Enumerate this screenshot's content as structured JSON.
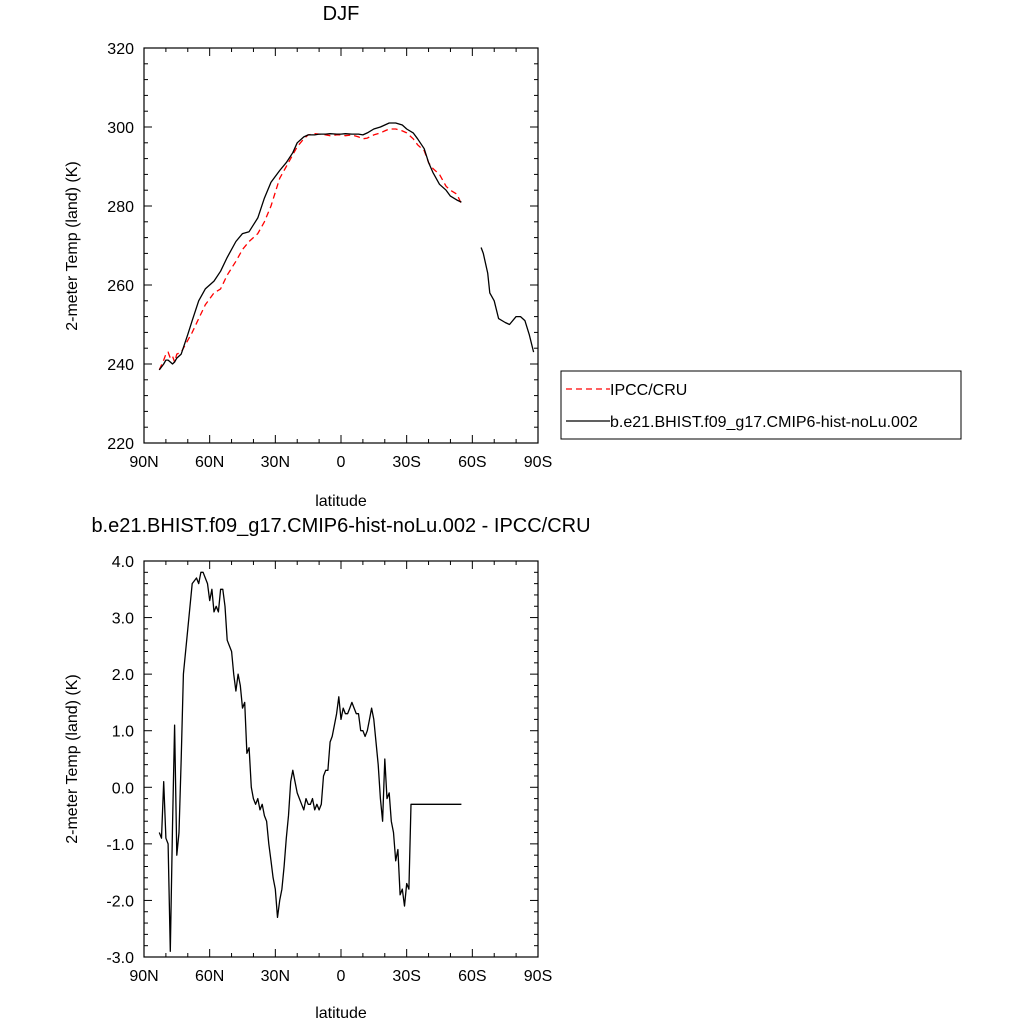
{
  "chart_data": [
    {
      "type": "line",
      "title": "DJF",
      "xlabel": "latitude",
      "ylabel": "2-meter Temp (land) (K)",
      "xlim": [
        90,
        -90
      ],
      "ylim": [
        220,
        320
      ],
      "x_ticks": [
        90,
        60,
        30,
        0,
        -30,
        -60,
        -90
      ],
      "x_tick_labels": [
        "90N",
        "60N",
        "30N",
        "0",
        "30S",
        "60S",
        "90S"
      ],
      "y_ticks": [
        220,
        240,
        260,
        280,
        300,
        320
      ],
      "y_tick_labels": [
        "220",
        "240",
        "260",
        "280",
        "300",
        "320"
      ],
      "legend_position": "right",
      "series": [
        {
          "name": "IPCC/CRU",
          "color": "#ff0000",
          "dash": "dashed",
          "x": [
            83,
            81,
            80,
            79,
            78,
            77,
            76,
            75,
            73,
            70,
            68,
            65,
            62,
            58,
            55,
            52,
            48,
            45,
            42,
            38,
            35,
            32,
            28,
            25,
            22,
            20,
            17,
            15,
            12,
            10,
            7,
            5,
            2,
            0,
            -2,
            -5,
            -8,
            -10,
            -12,
            -15,
            -18,
            -20,
            -22,
            -25,
            -28,
            -30,
            -33,
            -35,
            -38,
            -40,
            -42,
            -45,
            -48,
            -50,
            -53,
            -55
          ],
          "y": [
            238.5,
            241,
            242.5,
            243,
            241.5,
            242,
            240.5,
            242.5,
            243,
            246,
            248,
            251.5,
            255,
            258,
            259,
            262.5,
            266,
            269,
            271,
            273,
            276,
            280,
            287,
            290,
            293,
            295,
            297,
            298,
            298.3,
            298.2,
            298,
            297.8,
            298,
            298,
            297.8,
            298,
            297.5,
            297,
            297.2,
            298,
            298.5,
            299,
            299.5,
            299.5,
            299,
            298.5,
            297,
            295.5,
            294,
            291,
            289.5,
            288,
            285,
            284,
            283,
            280.5
          ]
        },
        {
          "name": "b.e21.BHIST.f09_g17.CMIP6-hist-noLu.002",
          "color": "#000000",
          "dash": "solid",
          "x": [
            83,
            81,
            80,
            79,
            78,
            77,
            76,
            75,
            73,
            70,
            68,
            65,
            62,
            58,
            55,
            52,
            48,
            45,
            42,
            38,
            35,
            32,
            28,
            25,
            22,
            20,
            17,
            15,
            12,
            10,
            7,
            5,
            2,
            0,
            -2,
            -5,
            -8,
            -10,
            -12,
            -15,
            -18,
            -20,
            -22,
            -25,
            -28,
            -30,
            -33,
            -35,
            -38,
            -40,
            -42,
            -45,
            -48,
            -50,
            -53,
            -55,
            null,
            -64,
            -65,
            -67,
            -68,
            -70,
            -72,
            -75,
            -77,
            -80,
            -82,
            -84,
            -86,
            -88
          ],
          "y": [
            238.5,
            240,
            241,
            241,
            240.5,
            240,
            240.5,
            241.5,
            242.5,
            247.5,
            251,
            256,
            259,
            261,
            263.5,
            267,
            271,
            273,
            273.5,
            277,
            282,
            286,
            289,
            291,
            293.5,
            296,
            297.5,
            298,
            298,
            298.2,
            298.2,
            298.3,
            298.2,
            298.2,
            298.3,
            298.2,
            298.2,
            298,
            298.5,
            299.5,
            300,
            300.5,
            301,
            301,
            300.5,
            299.5,
            298.5,
            297,
            294.5,
            291,
            288.5,
            285.5,
            284,
            282.5,
            281.5,
            281,
            null,
            269.5,
            268,
            263,
            258,
            256,
            251.5,
            250.5,
            250,
            252,
            252,
            251,
            247.5,
            243
          ]
        }
      ]
    },
    {
      "type": "line",
      "title": "b.e21.BHIST.f09_g17.CMIP6-hist-noLu.002 - IPCC/CRU",
      "xlabel": "latitude",
      "ylabel": "2-meter Temp (land) (K)",
      "xlim": [
        90,
        -90
      ],
      "ylim": [
        -3,
        4
      ],
      "x_ticks": [
        90,
        60,
        30,
        0,
        -30,
        -60,
        -90
      ],
      "x_tick_labels": [
        "90N",
        "60N",
        "30N",
        "0",
        "30S",
        "60S",
        "90S"
      ],
      "y_ticks": [
        -3,
        -2,
        -1,
        0,
        1,
        2,
        3,
        4
      ],
      "y_tick_labels": [
        "-3.0",
        "-2.0",
        "-1.0",
        "0.0",
        "1.0",
        "2.0",
        "3.0",
        "4.0"
      ],
      "series": [
        {
          "name": "",
          "color": "#000000",
          "dash": "solid",
          "x": [
            83,
            82,
            81,
            80,
            79,
            78,
            77,
            76,
            75,
            74,
            73,
            72,
            70,
            68,
            66,
            65,
            64,
            63,
            62,
            61,
            60,
            59,
            58,
            57,
            56,
            55,
            54,
            53,
            52,
            51,
            50,
            49,
            48,
            47,
            46,
            45,
            44,
            43,
            42,
            41,
            40,
            39,
            38,
            37,
            36,
            35,
            34,
            33,
            32,
            31,
            30,
            29,
            28,
            27,
            26,
            25,
            24,
            23,
            22,
            21,
            20,
            19,
            18,
            17,
            16,
            15,
            14,
            13,
            12,
            11,
            10,
            9,
            8,
            7,
            6,
            5,
            4,
            3,
            2,
            1,
            0,
            -1,
            -2,
            -3,
            -4,
            -5,
            -6,
            -7,
            -8,
            -9,
            -10,
            -11,
            -12,
            -13,
            -14,
            -15,
            -16,
            -17,
            -18,
            -19,
            -20,
            -21,
            -22,
            -23,
            -24,
            -25,
            -26,
            -27,
            -28,
            -29,
            -30,
            -31,
            -32,
            -33,
            -34,
            -35,
            -36,
            -37,
            -38,
            -39,
            -40,
            -41,
            -42,
            -43,
            -44,
            -45,
            -46,
            -47,
            -48,
            -49,
            -50,
            -51,
            -52,
            -53,
            -54,
            -55
          ],
          "y": [
            -0.8,
            -0.9,
            0.1,
            -0.9,
            -1.0,
            -2.9,
            -0.7,
            1.1,
            -1.2,
            -0.8,
            0.5,
            2.0,
            2.8,
            3.6,
            3.7,
            3.6,
            3.8,
            3.8,
            3.7,
            3.6,
            3.3,
            3.5,
            3.1,
            3.2,
            3.1,
            3.5,
            3.5,
            3.2,
            2.6,
            2.5,
            2.4,
            2.0,
            1.7,
            2.0,
            1.8,
            1.4,
            1.5,
            0.6,
            0.7,
            0.0,
            -0.2,
            -0.3,
            -0.2,
            -0.4,
            -0.3,
            -0.5,
            -0.6,
            -1.0,
            -1.3,
            -1.6,
            -1.8,
            -2.3,
            -2.0,
            -1.8,
            -1.4,
            -0.9,
            -0.5,
            0.1,
            0.3,
            0.1,
            -0.1,
            -0.2,
            -0.3,
            -0.4,
            -0.2,
            -0.3,
            -0.3,
            -0.2,
            -0.4,
            -0.3,
            -0.4,
            -0.3,
            0.2,
            0.3,
            0.3,
            0.8,
            0.9,
            1.1,
            1.3,
            1.6,
            1.2,
            1.4,
            1.3,
            1.3,
            1.4,
            1.5,
            1.4,
            1.3,
            1.3,
            1.0,
            1.0,
            0.9,
            1.0,
            1.2,
            1.4,
            1.2,
            0.8,
            0.4,
            -0.2,
            -0.6,
            0.5,
            -0.2,
            -0.1,
            -0.6,
            -0.8,
            -1.3,
            -1.1,
            -1.9,
            -1.8,
            -2.1,
            -1.7,
            -1.8,
            -0.3,
            -0.3,
            -0.3,
            -0.3,
            -0.3,
            -0.3,
            -0.3,
            -0.3,
            -0.3,
            -0.3,
            -0.3,
            -0.3,
            -0.3,
            -0.3,
            -0.3,
            -0.3,
            -0.3,
            -0.3,
            -0.3,
            -0.3,
            -0.3,
            -0.3,
            -0.3,
            -0.3
          ]
        }
      ]
    }
  ]
}
